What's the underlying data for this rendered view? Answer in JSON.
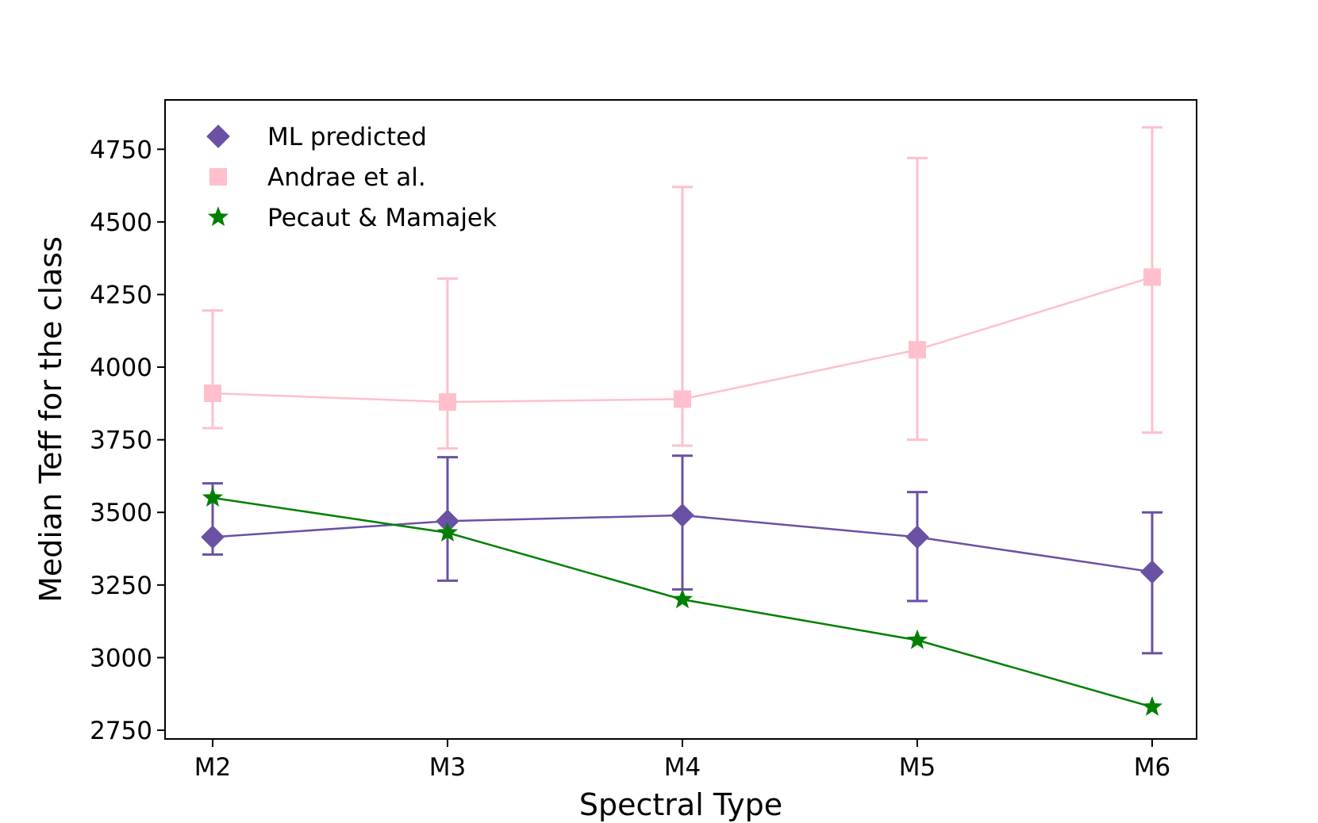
{
  "chart_data": {
    "type": "line",
    "title": "",
    "xlabel": "Spectral Type",
    "ylabel": "Median Teff for the class",
    "categories": [
      "M2",
      "M3",
      "M4",
      "M5",
      "M6"
    ],
    "ylim": [
      2720,
      4920
    ],
    "yticks": [
      2750,
      3000,
      3250,
      3500,
      3750,
      4000,
      4250,
      4500,
      4750
    ],
    "legend_position": "top-left",
    "grid": false,
    "series": [
      {
        "name": "Andrae et al.",
        "color": "#ffc0cb",
        "marker": "square",
        "values": [
          3910,
          3880,
          3890,
          4060,
          4310
        ],
        "err_low": [
          3790,
          3720,
          3730,
          3750,
          3775
        ],
        "err_high": [
          4195,
          4305,
          4620,
          4720,
          4825
        ]
      },
      {
        "name": "ML predicted",
        "color": "#6a51a3",
        "marker": "diamond",
        "values": [
          3415,
          3470,
          3490,
          3415,
          3295
        ],
        "err_low": [
          3355,
          3265,
          3235,
          3195,
          3015
        ],
        "err_high": [
          3600,
          3690,
          3695,
          3570,
          3500
        ]
      },
      {
        "name": "Pecaut & Mamajek",
        "color": "#008000",
        "marker": "star",
        "values": [
          3550,
          3430,
          3200,
          3060,
          2830
        ],
        "err_low": null,
        "err_high": null
      }
    ],
    "legend": [
      "ML predicted",
      "Andrae et al.",
      "Pecaut & Mamajek"
    ]
  }
}
